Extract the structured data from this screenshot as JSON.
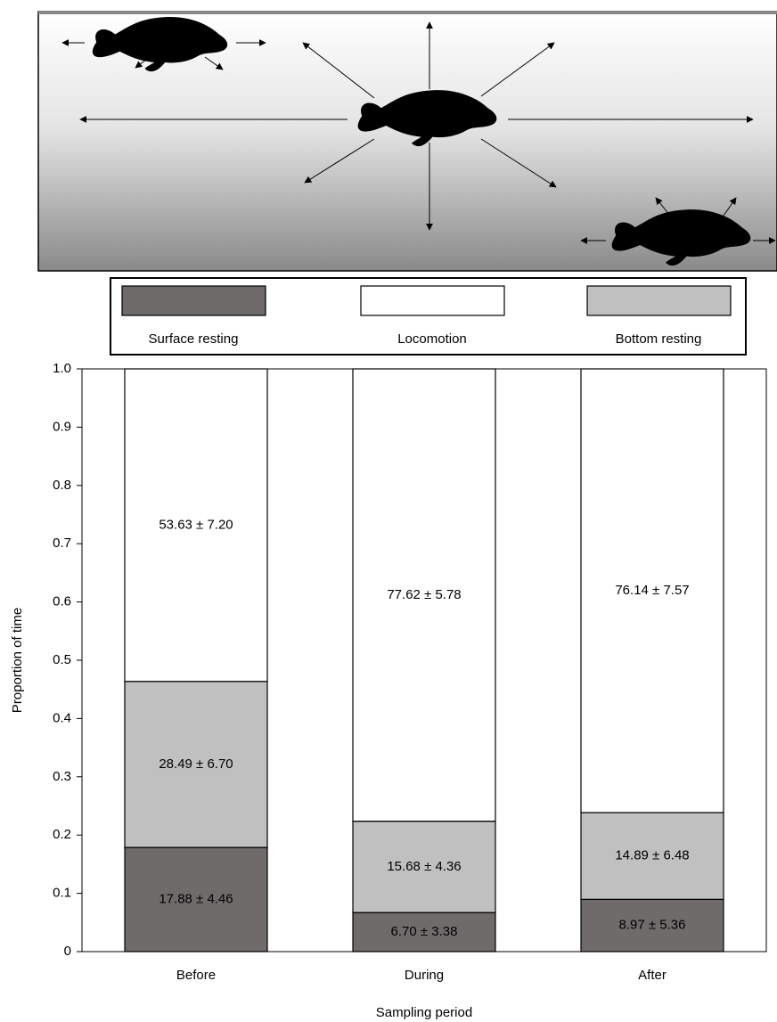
{
  "chart_data": {
    "type": "stacked_bar",
    "categories": [
      "Before",
      "During",
      "After"
    ],
    "series": [
      {
        "name": "Surface resting",
        "color": "#6f6b6b",
        "values": [
          0.1788,
          0.067,
          0.0897
        ],
        "value_labels": [
          "17.88 ± 4.46",
          "6.70 ± 3.38",
          "8.97 ± 5.36"
        ]
      },
      {
        "name": "Bottom resting",
        "color": "#c0c0c0",
        "values": [
          0.2849,
          0.1568,
          0.1489
        ],
        "value_labels": [
          "28.49 ± 6.70",
          "15.68 ± 4.36",
          "14.89 ± 6.48"
        ]
      },
      {
        "name": "Locomotion",
        "color": "#ffffff",
        "values": [
          0.5363,
          0.7762,
          0.7614
        ],
        "value_labels": [
          "53.63 ± 7.20",
          "77.62 ± 5.78",
          "76.14 ± 7.57"
        ]
      }
    ],
    "ylim": [
      0,
      1
    ],
    "yticks": [
      0,
      0.1,
      0.2,
      0.3,
      0.4,
      0.5,
      0.6,
      0.7,
      0.8,
      0.9,
      {
        "value": 1,
        "label": "1.0"
      }
    ],
    "x_label": "Sampling period",
    "y_label": "Proportion of time"
  }
}
